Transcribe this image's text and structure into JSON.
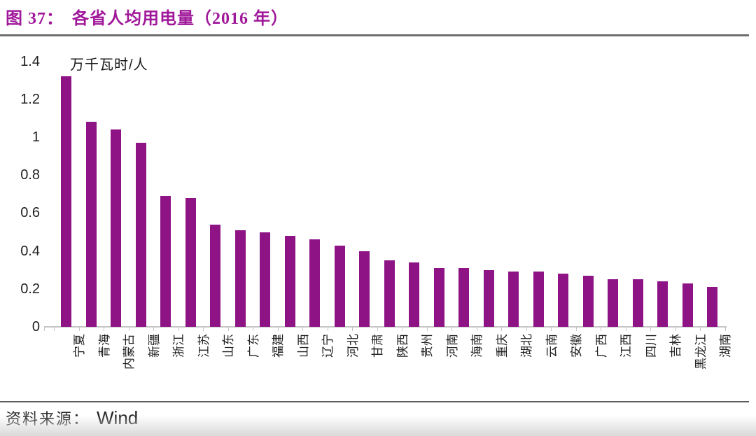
{
  "header": {
    "figure_label": "图 37：",
    "title": "各省人均用电量（2016 年）",
    "title_color": "#a0189a"
  },
  "chart_data": {
    "type": "bar",
    "title": "各省人均用电量（2016 年）",
    "unit_label": "万千瓦时/人",
    "categories": [
      "宁夏",
      "青海",
      "内蒙古",
      "新疆",
      "浙江",
      "江苏",
      "山东",
      "广东",
      "福建",
      "山西",
      "辽宁",
      "河北",
      "甘肃",
      "陕西",
      "贵州",
      "河南",
      "海南",
      "重庆",
      "湖北",
      "云南",
      "安徽",
      "广西",
      "江西",
      "四川",
      "吉林",
      "黑龙江",
      "湖南"
    ],
    "values": [
      1.32,
      1.08,
      1.04,
      0.97,
      0.69,
      0.68,
      0.54,
      0.51,
      0.5,
      0.48,
      0.46,
      0.43,
      0.4,
      0.35,
      0.34,
      0.31,
      0.31,
      0.3,
      0.29,
      0.29,
      0.28,
      0.27,
      0.25,
      0.25,
      0.24,
      0.23,
      0.21
    ],
    "ylim": [
      0,
      1.4
    ],
    "yticks": [
      {
        "label": "1.4",
        "value": 1.4
      },
      {
        "label": "1.2",
        "value": 1.2
      },
      {
        "label": "1",
        "value": 1.0
      },
      {
        "label": "0.8",
        "value": 0.8
      },
      {
        "label": "0.6",
        "value": 0.6
      },
      {
        "label": "0.4",
        "value": 0.4
      },
      {
        "label": "0.2",
        "value": 0.2
      },
      {
        "label": "0",
        "value": 0.0
      }
    ],
    "grid": false,
    "legend": "none",
    "bar_color": "#8e1486",
    "axis_color": "#c6c6c6"
  },
  "footer": {
    "source_label": "资料来源：",
    "source_value": "Wind"
  }
}
